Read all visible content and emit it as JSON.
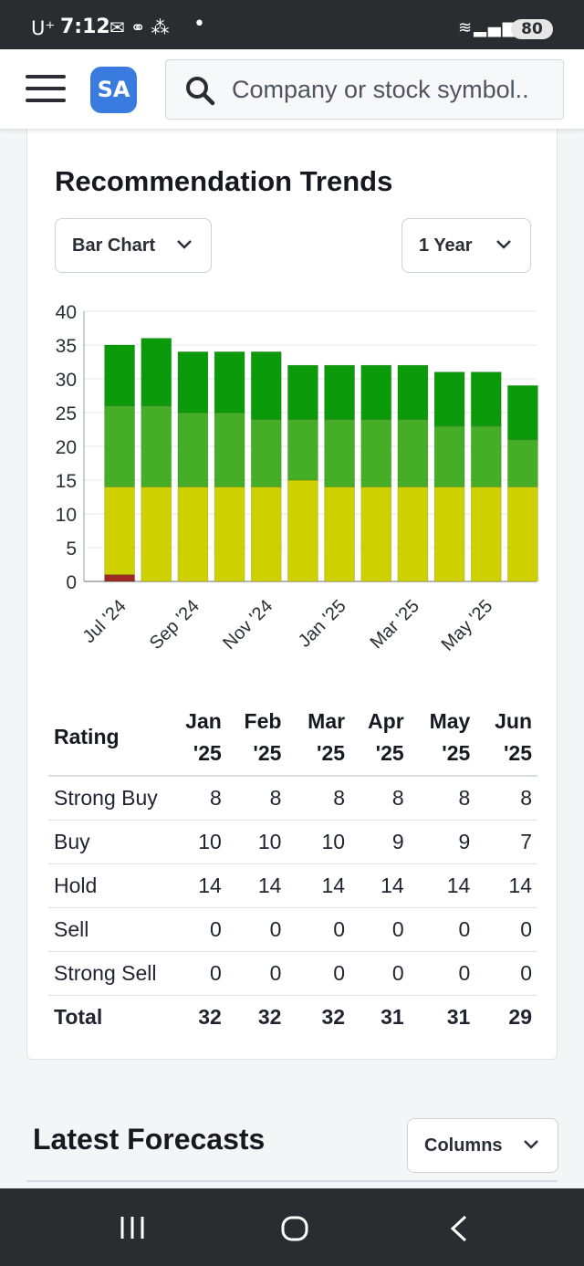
{
  "status_bar": {
    "carrier": "U⁺",
    "time": "7:12",
    "notification_icons": [
      "mail-icon",
      "link-icon",
      "app-icon"
    ],
    "dot": "•",
    "battery": "80"
  },
  "header": {
    "logo_text": "SA",
    "search_placeholder": "Company or stock symbol.."
  },
  "recommendation_trends": {
    "title": "Recommendation Trends",
    "chart_type_select": "Bar Chart",
    "range_select": "1 Year"
  },
  "chart_data": {
    "type": "bar",
    "stacked": true,
    "categories": [
      "Jul '24",
      "Aug '24",
      "Sep '24",
      "Oct '24",
      "Nov '24",
      "Dec '24",
      "Jan '25",
      "Feb '25",
      "Mar '25",
      "Apr '25",
      "May '25",
      "Jun '25"
    ],
    "x_tick_labels": [
      "Jul '24",
      "Sep '24",
      "Nov '24",
      "Jan '25",
      "Mar '25",
      "May '25"
    ],
    "series": [
      {
        "key": "sell",
        "color": "#9b2a22",
        "values": [
          1,
          0,
          0,
          0,
          0,
          0,
          0,
          0,
          0,
          0,
          0,
          0
        ]
      },
      {
        "key": "hold",
        "color": "#cfd000",
        "values": [
          13,
          14,
          14,
          14,
          14,
          15,
          14,
          14,
          14,
          14,
          14,
          14
        ]
      },
      {
        "key": "buy",
        "color": "#45ad26",
        "values": [
          12,
          12,
          11,
          11,
          10,
          9,
          10,
          10,
          10,
          9,
          9,
          7
        ]
      },
      {
        "key": "strong_buy",
        "color": "#0a9a0a",
        "values": [
          9,
          10,
          9,
          9,
          10,
          8,
          8,
          8,
          8,
          8,
          8,
          8
        ]
      }
    ],
    "ylim": [
      0,
      40
    ],
    "yticks": [
      0,
      5,
      10,
      15,
      20,
      25,
      30,
      35,
      40
    ],
    "grid": true,
    "legend": "none"
  },
  "ratings_table": {
    "rating_header": "Rating",
    "months": [
      {
        "month": "Jan",
        "year": "'25"
      },
      {
        "month": "Feb",
        "year": "'25"
      },
      {
        "month": "Mar",
        "year": "'25"
      },
      {
        "month": "Apr",
        "year": "'25"
      },
      {
        "month": "May",
        "year": "'25"
      },
      {
        "month": "Jun",
        "year": "'25"
      }
    ],
    "rows": [
      {
        "label": "Strong Buy",
        "values": [
          "8",
          "8",
          "8",
          "8",
          "8",
          "8"
        ]
      },
      {
        "label": "Buy",
        "values": [
          "10",
          "10",
          "10",
          "9",
          "9",
          "7"
        ]
      },
      {
        "label": "Hold",
        "values": [
          "14",
          "14",
          "14",
          "14",
          "14",
          "14"
        ]
      },
      {
        "label": "Sell",
        "values": [
          "0",
          "0",
          "0",
          "0",
          "0",
          "0"
        ]
      },
      {
        "label": "Strong Sell",
        "values": [
          "0",
          "0",
          "0",
          "0",
          "0",
          "0"
        ]
      }
    ],
    "total": {
      "label": "Total",
      "values": [
        "32",
        "32",
        "32",
        "31",
        "31",
        "29"
      ]
    }
  },
  "latest_forecasts": {
    "title": "Latest Forecasts",
    "columns_select": "Columns"
  },
  "nav_bar": {
    "icons": [
      "recent-apps-icon",
      "home-icon",
      "back-icon"
    ]
  }
}
